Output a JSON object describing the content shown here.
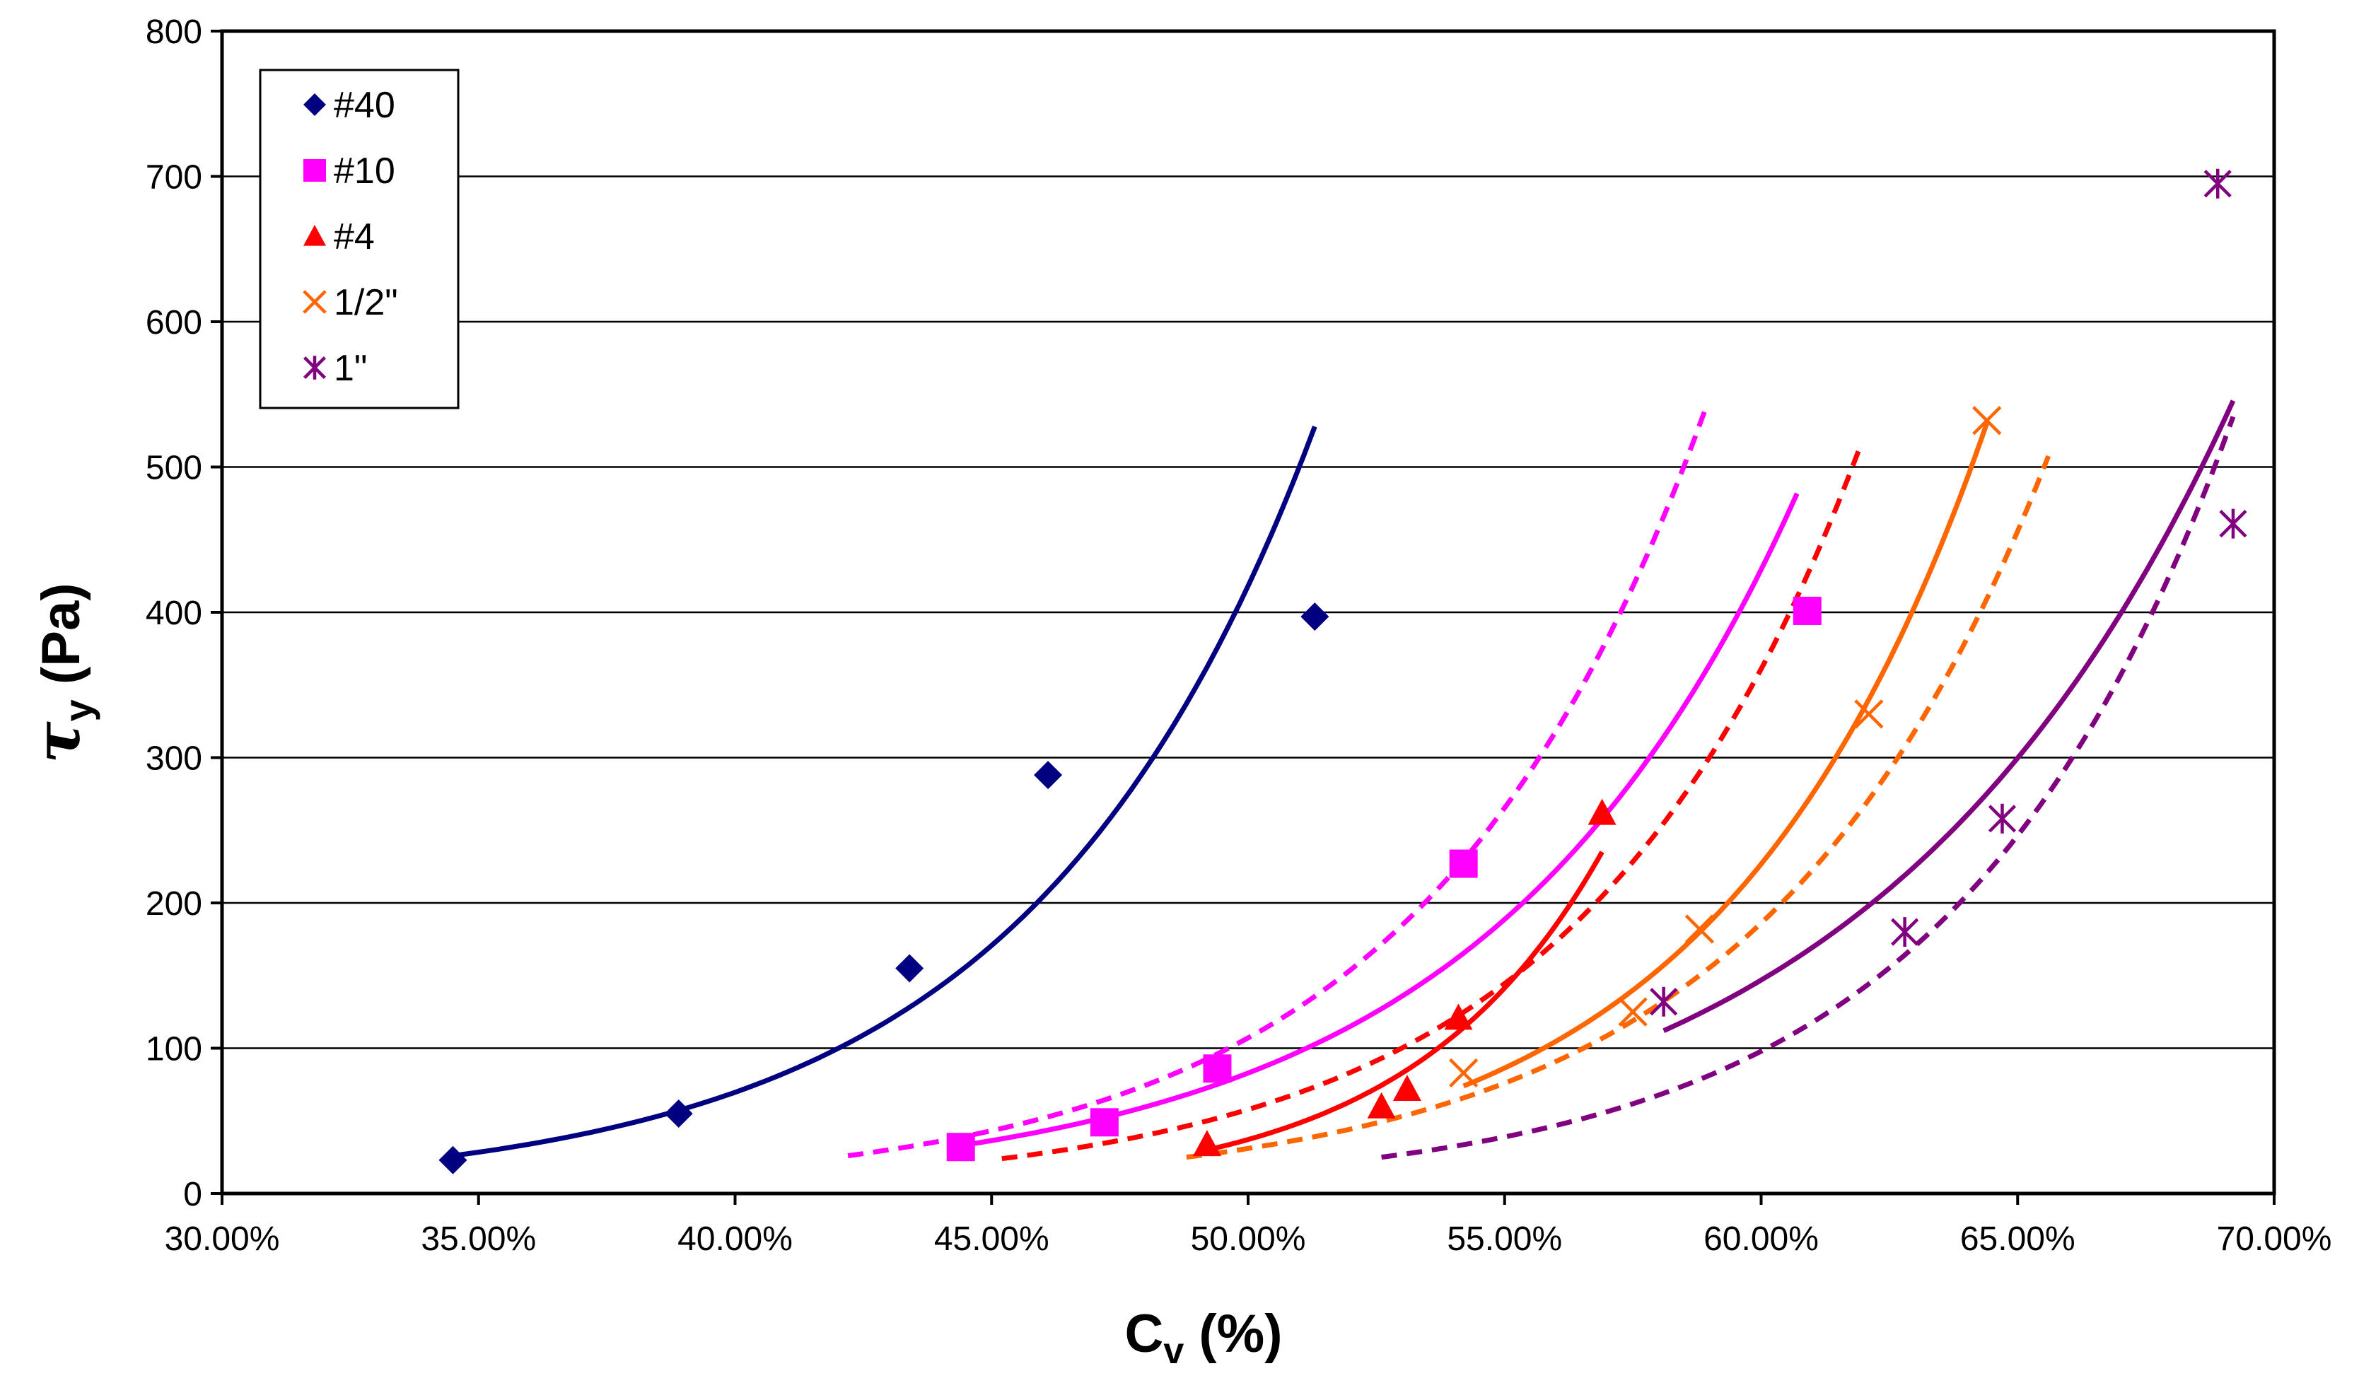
{
  "chart_data": {
    "type": "scatter",
    "title": "",
    "xlabel": {
      "main": "C",
      "sub": "v",
      "rest": " (%)"
    },
    "ylabel": {
      "main": "τ",
      "sub": "y",
      "rest": " (Pa)"
    },
    "xlim": [
      0.3,
      0.7
    ],
    "ylim": [
      0,
      800
    ],
    "xticks": [
      0.3,
      0.35,
      0.4,
      0.45,
      0.5,
      0.55,
      0.6,
      0.65,
      0.7
    ],
    "xtick_labels": [
      "30.00%",
      "35.00%",
      "40.00%",
      "45.00%",
      "50.00%",
      "55.00%",
      "60.00%",
      "65.00%",
      "70.00%"
    ],
    "yticks": [
      0,
      100,
      200,
      300,
      400,
      500,
      600,
      700,
      800
    ],
    "ytick_labels": [
      "0",
      "100",
      "200",
      "300",
      "400",
      "500",
      "600",
      "700",
      "800"
    ],
    "grid": "horizontal",
    "legend_position": "top-left",
    "series": [
      {
        "name": "#40",
        "color": "#000080",
        "marker": "diamond",
        "x": [
          0.345,
          0.389,
          0.434,
          0.461,
          0.513
        ],
        "y": [
          23,
          55,
          155,
          288,
          397
        ],
        "fits": [
          {
            "style": "solid",
            "x_range": [
              0.345,
              0.513
            ],
            "a": 26,
            "b": 0.345,
            "c": 0.0558
          }
        ]
      },
      {
        "name": "#10",
        "color": "#FF00FF",
        "marker": "square",
        "x": [
          0.444,
          0.472,
          0.494,
          0.542,
          0.609
        ],
        "y": [
          32,
          49,
          86,
          227,
          401
        ],
        "fits": [
          {
            "style": "solid",
            "x_range": [
              0.444,
              0.607
            ],
            "a": 33,
            "b": 0.444,
            "c": 0.0608
          },
          {
            "style": "dashed",
            "x_range": [
              0.422,
              0.589
            ],
            "a": 26,
            "b": 0.422,
            "c": 0.0551
          }
        ]
      },
      {
        "name": "#4",
        "color": "#FF0000",
        "marker": "triangle",
        "x": [
          0.492,
          0.526,
          0.531,
          0.541,
          0.569
        ],
        "y": [
          34,
          60,
          72,
          121,
          262
        ],
        "fits": [
          {
            "style": "solid",
            "x_range": [
              0.492,
              0.569
            ],
            "a": 30,
            "b": 0.492,
            "c": 0.0374
          },
          {
            "style": "dashed",
            "x_range": [
              0.452,
              0.619
            ],
            "a": 24,
            "b": 0.452,
            "c": 0.0546
          }
        ]
      },
      {
        "name": "1/2\"",
        "color": "#FF6600",
        "marker": "x",
        "x": [
          0.542,
          0.575,
          0.588,
          0.621,
          0.644
        ],
        "y": [
          83,
          125,
          182,
          330,
          532
        ],
        "fits": [
          {
            "style": "solid",
            "x_range": [
              0.542,
              0.644
            ],
            "a": 74,
            "b": 0.542,
            "c": 0.0518
          },
          {
            "style": "dashed",
            "x_range": [
              0.488,
              0.656
            ],
            "a": 25,
            "b": 0.488,
            "c": 0.0558
          }
        ]
      },
      {
        "name": "1\"",
        "color": "#800080",
        "marker": "star",
        "x": [
          0.581,
          0.628,
          0.647,
          0.689,
          0.692
        ],
        "y": [
          132,
          180,
          258,
          695,
          461
        ],
        "fits": [
          {
            "style": "solid",
            "x_range": [
              0.581,
              0.692
            ],
            "a": 112,
            "b": 0.581,
            "c": 0.0701
          },
          {
            "style": "dashed",
            "x_range": [
              0.526,
              0.692
            ],
            "a": 25,
            "b": 0.526,
            "c": 0.0542
          }
        ]
      }
    ]
  }
}
